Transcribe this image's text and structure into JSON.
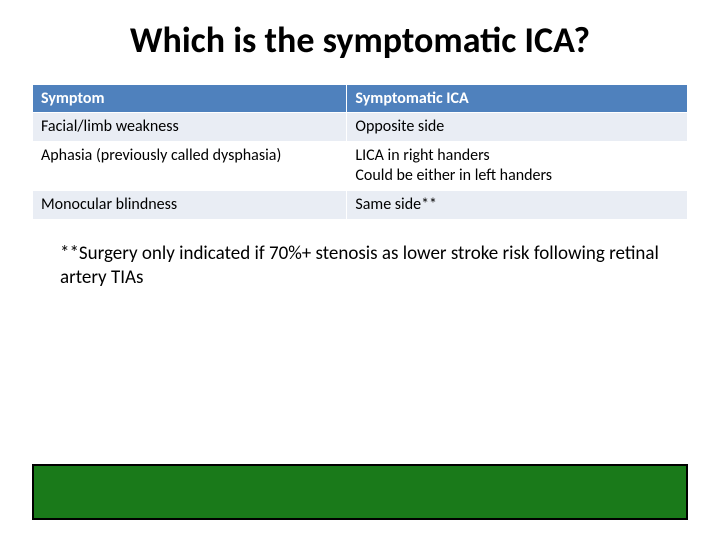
{
  "title": "Which is the symptomatic ICA?",
  "table": {
    "columns": [
      "Symptom",
      "Symptomatic ICA"
    ],
    "rows": [
      [
        "Facial/limb weakness",
        "Opposite side"
      ],
      [
        "Aphasia (previously called dysphasia)",
        "LICA in right handers\nCould be either in left handers"
      ],
      [
        "Monocular blindness",
        "Same side**"
      ]
    ],
    "header_bg": "#4f81bd",
    "header_fg": "#ffffff",
    "row_bg": [
      "#e9edf4",
      "#ffffff",
      "#e9edf4"
    ],
    "font_size": 16,
    "col_widths_pct": [
      48,
      52
    ]
  },
  "footnote": "**Surgery only indicated if 70%+ stenosis as lower stroke risk following retinal artery TIAs",
  "bottom_bar": {
    "fill": "#1a7a1a",
    "border": "#000000",
    "border_width": 2
  },
  "title_fontsize": 36,
  "note_fontsize": 19,
  "background_color": "#ffffff"
}
